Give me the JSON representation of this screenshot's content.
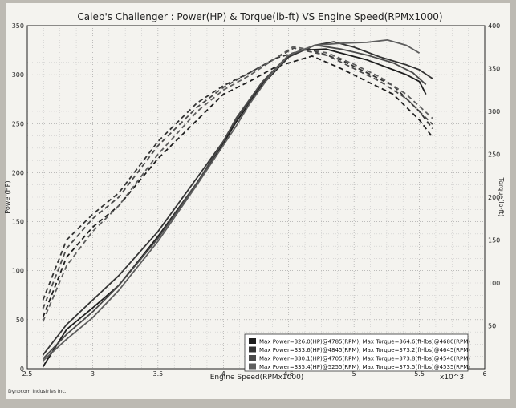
{
  "chart_data": {
    "type": "line",
    "title": "Caleb's Challenger : Power(HP) & Torque(lb-ft) VS Engine Speed(RPMx1000)",
    "xlabel": "Engine Speed(RPMx1000)",
    "x_multiplier": "x10^3",
    "ylabel_left": "Power(HP)",
    "ylabel_right": "Torque(lb-ft)",
    "xlim": [
      2.5,
      6
    ],
    "ylim_left": [
      0,
      350
    ],
    "ylim_right": [
      0,
      400
    ],
    "x_ticks": [
      "2.5",
      "3",
      "3.5",
      "4",
      "4.5",
      "5",
      "5.5",
      "6"
    ],
    "y_ticks_left": [
      "0",
      "50",
      "100",
      "150",
      "200",
      "250",
      "300",
      "350"
    ],
    "y_ticks_right": [
      "50",
      "100",
      "150",
      "200",
      "250",
      "300",
      "350",
      "400"
    ],
    "grid": true,
    "legend_position": "bottom-right",
    "legend": [
      "Max Power=326.0(HP)@4785(RPM), Max Torque=364.6(ft-lbs)@4680(RPM)",
      "Max Power=333.6(HP)@4845(RPM), Max Torque=373.2(ft-lbs)@4645(RPM)",
      "Max Power=330.1(HP)@4705(RPM), Max Torque=373.8(ft-lbs)@4540(RPM)",
      "Max Power=335.4(HP)@5255(RPM), Max Torque=375.5(ft-lbs)@4535(RPM)"
    ],
    "colors": [
      "#1e1e1e",
      "#343434",
      "#4a4a4a",
      "#5e5e5e"
    ],
    "power_series": [
      {
        "x": [
          2.62,
          2.8,
          3.0,
          3.2,
          3.5,
          3.8,
          4.0,
          4.1,
          4.3,
          4.5,
          4.6,
          4.785,
          4.9,
          5.1,
          5.3,
          5.4,
          5.5,
          5.55
        ],
        "y": [
          2,
          40,
          62,
          85,
          135,
          190,
          230,
          252,
          290,
          318,
          325,
          326,
          322,
          315,
          305,
          300,
          293,
          280
        ]
      },
      {
        "x": [
          2.62,
          2.8,
          3.0,
          3.2,
          3.5,
          3.8,
          4.0,
          4.1,
          4.3,
          4.5,
          4.7,
          4.845,
          5.0,
          5.2,
          5.4,
          5.5,
          5.6
        ],
        "y": [
          14,
          45,
          70,
          95,
          140,
          195,
          232,
          255,
          292,
          318,
          330,
          333.6,
          328,
          318,
          310,
          305,
          296
        ]
      },
      {
        "x": [
          2.62,
          2.8,
          3.0,
          3.2,
          3.5,
          3.8,
          4.0,
          4.1,
          4.3,
          4.5,
          4.705,
          4.9,
          5.1,
          5.3,
          5.45,
          5.55
        ],
        "y": [
          10,
          35,
          58,
          85,
          133,
          190,
          232,
          256,
          293,
          320,
          330.1,
          326,
          320,
          312,
          302,
          290
        ]
      },
      {
        "x": [
          2.62,
          2.8,
          3.0,
          3.2,
          3.5,
          3.8,
          4.0,
          4.1,
          4.2,
          4.35,
          4.5,
          4.7,
          4.9,
          5.1,
          5.255,
          5.4,
          5.5
        ],
        "y": [
          8,
          30,
          52,
          80,
          130,
          188,
          228,
          248,
          270,
          298,
          320,
          330,
          332,
          333,
          335.4,
          330,
          322
        ]
      }
    ],
    "torque_series": [
      {
        "x": [
          2.62,
          2.8,
          3.0,
          3.2,
          3.5,
          3.8,
          4.0,
          4.2,
          4.4,
          4.68,
          4.9,
          5.1,
          5.3,
          5.5,
          5.6
        ],
        "y": [
          60,
          130,
          165,
          190,
          245,
          290,
          320,
          335,
          352,
          364.6,
          350,
          335,
          320,
          290,
          270
        ]
      },
      {
        "x": [
          2.62,
          2.8,
          3.0,
          3.2,
          3.5,
          3.8,
          4.0,
          4.2,
          4.4,
          4.645,
          4.9,
          5.1,
          5.3,
          5.5,
          5.6
        ],
        "y": [
          80,
          150,
          180,
          205,
          265,
          310,
          330,
          345,
          362,
          373.2,
          360,
          345,
          330,
          300,
          280
        ]
      },
      {
        "x": [
          2.62,
          2.8,
          3.0,
          3.2,
          3.5,
          3.8,
          4.0,
          4.2,
          4.54,
          4.8,
          5.0,
          5.2,
          5.4,
          5.6
        ],
        "y": [
          70,
          140,
          175,
          200,
          260,
          305,
          328,
          345,
          373.8,
          365,
          350,
          335,
          315,
          285
        ]
      },
      {
        "x": [
          2.62,
          2.8,
          3.0,
          3.2,
          3.5,
          3.8,
          4.0,
          4.2,
          4.535,
          4.8,
          5.0,
          5.2,
          5.4,
          5.6
        ],
        "y": [
          55,
          120,
          160,
          190,
          250,
          300,
          325,
          342,
          375.5,
          368,
          355,
          340,
          320,
          292
        ]
      }
    ],
    "footer": "Dynocom Industries Inc."
  }
}
